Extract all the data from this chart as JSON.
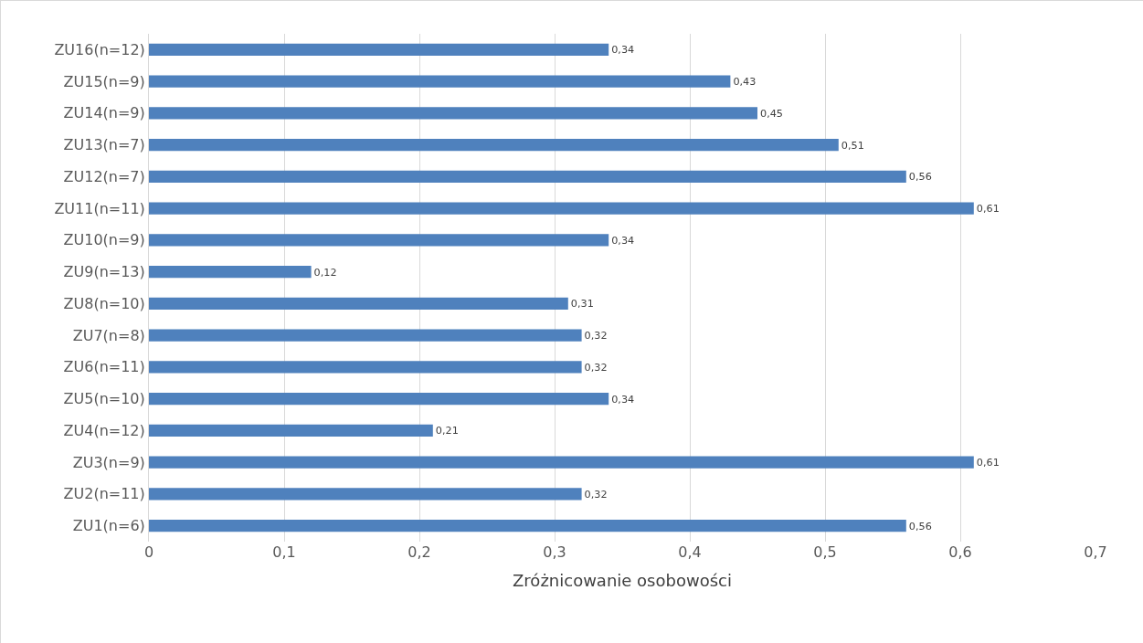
{
  "chart_data": {
    "type": "bar",
    "orientation": "horizontal",
    "xlabel": "Zróżnicowanie osobowości",
    "categories": [
      "ZU16(n=12)",
      "ZU15(n=9)",
      "ZU14(n=9)",
      "ZU13(n=7)",
      "ZU12(n=7)",
      "ZU11(n=11)",
      "ZU10(n=9)",
      "ZU9(n=13)",
      "ZU8(n=10)",
      "ZU7(n=8)",
      "ZU6(n=11)",
      "ZU5(n=10)",
      "ZU4(n=12)",
      "ZU3(n=9)",
      "ZU2(n=11)",
      "ZU1(n=6)"
    ],
    "values": [
      0.34,
      0.43,
      0.45,
      0.51,
      0.56,
      0.61,
      0.34,
      0.12,
      0.31,
      0.32,
      0.32,
      0.34,
      0.21,
      0.61,
      0.32,
      0.56
    ],
    "value_labels": [
      "0,34",
      "0,43",
      "0,45",
      "0,51",
      "0,56",
      "0,61",
      "0,34",
      "0,12",
      "0,31",
      "0,32",
      "0,32",
      "0,34",
      "0,21",
      "0,61",
      "0,32",
      "0,56"
    ],
    "color": "#4f81bd",
    "xlim": [
      0,
      0.7
    ],
    "xticks": [
      0,
      {
        "value": 0.1,
        "label": "0,1"
      },
      {
        "value": 0.2,
        "label": "0,2"
      },
      {
        "value": 0.3,
        "label": "0,3"
      },
      {
        "value": 0.4,
        "label": "0,4"
      },
      {
        "value": 0.5,
        "label": "0,5"
      },
      {
        "value": 0.6,
        "label": "0,6"
      },
      {
        "value": 0.7,
        "label": "0,7"
      }
    ],
    "grid": "x",
    "legend": false
  }
}
